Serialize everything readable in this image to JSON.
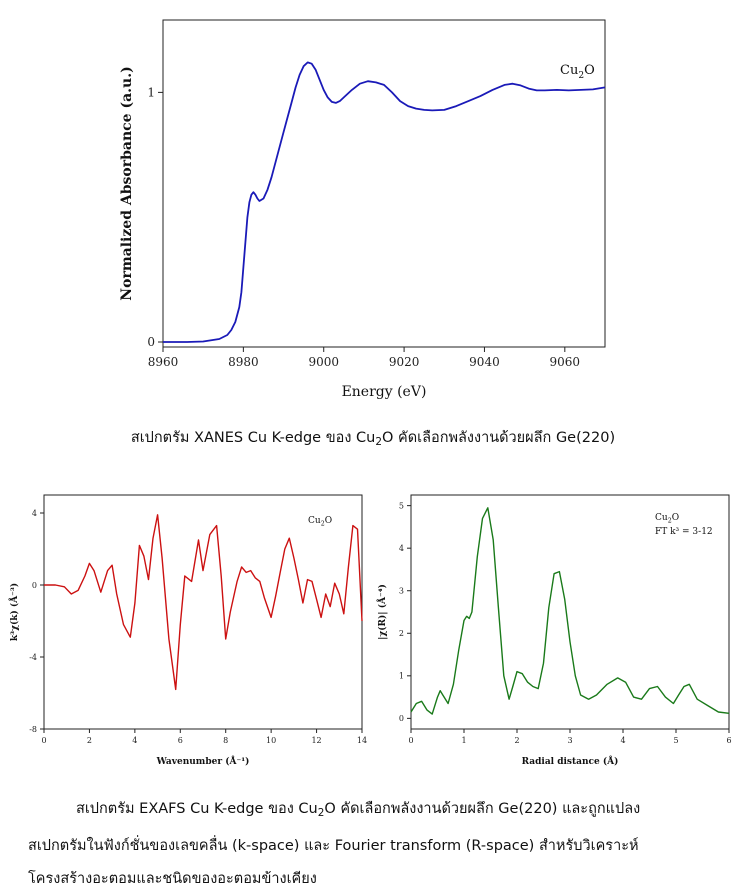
{
  "chart_data": [
    {
      "type": "line",
      "xlabel": "Energy (eV)",
      "ylabel": "Normalized Absorbance (a.u.)",
      "xlim": [
        8960,
        9070
      ],
      "ylim": [
        -0.02,
        1.29
      ],
      "xticks": [
        "8960",
        "8980",
        "9000",
        "9020",
        "9040",
        "9060"
      ],
      "yticks": [
        "0",
        "1"
      ],
      "legend": "Cu₂O",
      "color": "#1a1ab8",
      "series": [
        {
          "name": "Cu₂O",
          "x": [
            8960,
            8966,
            8970,
            8974,
            8976,
            8977,
            8978,
            8979,
            8979.5,
            8980,
            8980.5,
            8981,
            8981.5,
            8982,
            8982.5,
            8983,
            8983.5,
            8984,
            8985,
            8986,
            8987,
            8988,
            8990,
            8992,
            8993,
            8994,
            8995,
            8996,
            8997,
            8998,
            8999,
            9000,
            9001,
            9002,
            9003,
            9004,
            9005,
            9007,
            9009,
            9011,
            9013,
            9015,
            9017,
            9019,
            9021,
            9023,
            9025,
            9027,
            9030,
            9033,
            9036,
            9039,
            9042,
            9045,
            9047,
            9049,
            9051,
            9053,
            9055,
            9058,
            9061,
            9064,
            9067,
            9070
          ],
          "y": [
            0,
            0,
            0.002,
            0.012,
            0.028,
            0.048,
            0.08,
            0.14,
            0.2,
            0.3,
            0.4,
            0.5,
            0.56,
            0.59,
            0.6,
            0.59,
            0.575,
            0.565,
            0.575,
            0.61,
            0.66,
            0.72,
            0.84,
            0.96,
            1.02,
            1.07,
            1.105,
            1.12,
            1.115,
            1.09,
            1.05,
            1.01,
            0.98,
            0.962,
            0.958,
            0.965,
            0.98,
            1.01,
            1.035,
            1.045,
            1.04,
            1.03,
            1.0,
            0.965,
            0.945,
            0.935,
            0.93,
            0.928,
            0.93,
            0.945,
            0.965,
            0.985,
            1.01,
            1.03,
            1.035,
            1.028,
            1.015,
            1.008,
            1.008,
            1.01,
            1.008,
            1.01,
            1.012,
            1.02
          ]
        }
      ]
    },
    {
      "type": "line",
      "xlabel": "Wavenumber (Å⁻¹)",
      "ylabel": "k³χ(k) (Å⁻³)",
      "xlim": [
        0,
        14
      ],
      "ylim": [
        -8,
        5
      ],
      "xticks": [
        "0",
        "2",
        "4",
        "6",
        "8",
        "10",
        "12",
        "14"
      ],
      "yticks": [
        "-8",
        "-4",
        "0",
        "4"
      ],
      "legend": "Cu₂O",
      "color": "#cc1111",
      "series": [
        {
          "name": "Cu₂O",
          "x": [
            0,
            0.5,
            0.9,
            1.2,
            1.5,
            1.8,
            2.0,
            2.2,
            2.5,
            2.8,
            3.0,
            3.2,
            3.5,
            3.8,
            4.0,
            4.2,
            4.4,
            4.6,
            4.8,
            5.0,
            5.2,
            5.5,
            5.8,
            6.0,
            6.2,
            6.5,
            6.8,
            7.0,
            7.3,
            7.6,
            7.8,
            8.0,
            8.2,
            8.5,
            8.7,
            8.9,
            9.1,
            9.3,
            9.5,
            9.7,
            10.0,
            10.2,
            10.4,
            10.6,
            10.8,
            11.0,
            11.2,
            11.4,
            11.6,
            11.8,
            12.0,
            12.2,
            12.4,
            12.6,
            12.8,
            13.0,
            13.2,
            13.4,
            13.6,
            13.8,
            14.0
          ],
          "y": [
            0,
            0,
            -0.1,
            -0.5,
            -0.3,
            0.5,
            1.2,
            0.8,
            -0.4,
            0.8,
            1.1,
            -0.5,
            -2.2,
            -2.9,
            -1.0,
            2.2,
            1.6,
            0.3,
            2.6,
            3.9,
            1.5,
            -3.0,
            -5.8,
            -2.2,
            0.5,
            0.2,
            2.5,
            0.8,
            2.8,
            3.3,
            0.5,
            -3.0,
            -1.5,
            0.2,
            1.0,
            0.7,
            0.8,
            0.4,
            0.2,
            -0.7,
            -1.8,
            -0.6,
            0.7,
            2.0,
            2.6,
            1.5,
            0.3,
            -1.0,
            0.3,
            0.2,
            -0.8,
            -1.8,
            -0.5,
            -1.2,
            0.1,
            -0.5,
            -1.6,
            1.0,
            3.3,
            3.1,
            -2.0
          ]
        }
      ]
    },
    {
      "type": "line",
      "xlabel": "Radial distance (Å)",
      "ylabel": "|χ(R)| (Å⁻⁴)",
      "xlim": [
        0,
        6
      ],
      "ylim": [
        -0.25,
        5.25
      ],
      "xticks": [
        "0",
        "1",
        "2",
        "3",
        "4",
        "5",
        "6"
      ],
      "yticks": [
        "0",
        "1",
        "2",
        "3",
        "4",
        "5"
      ],
      "legend": "Cu₂O",
      "annotation": "FT k³ = 3-12",
      "color": "#1a7a1a",
      "series": [
        {
          "name": "Cu₂O",
          "x": [
            0,
            0.1,
            0.2,
            0.3,
            0.4,
            0.5,
            0.55,
            0.6,
            0.7,
            0.8,
            0.9,
            1.0,
            1.05,
            1.1,
            1.15,
            1.25,
            1.35,
            1.45,
            1.55,
            1.65,
            1.75,
            1.85,
            1.92,
            2.0,
            2.1,
            2.2,
            2.3,
            2.4,
            2.5,
            2.6,
            2.7,
            2.8,
            2.9,
            3.0,
            3.1,
            3.2,
            3.35,
            3.5,
            3.7,
            3.9,
            4.05,
            4.2,
            4.35,
            4.5,
            4.65,
            4.8,
            4.95,
            5.05,
            5.15,
            5.25,
            5.4,
            5.6,
            5.8,
            6.0
          ],
          "y": [
            0.15,
            0.35,
            0.4,
            0.2,
            0.1,
            0.5,
            0.65,
            0.55,
            0.35,
            0.8,
            1.6,
            2.3,
            2.4,
            2.35,
            2.5,
            3.8,
            4.7,
            4.95,
            4.2,
            2.6,
            1.0,
            0.45,
            0.75,
            1.1,
            1.05,
            0.85,
            0.75,
            0.7,
            1.3,
            2.6,
            3.4,
            3.45,
            2.8,
            1.8,
            1.0,
            0.55,
            0.45,
            0.55,
            0.8,
            0.95,
            0.85,
            0.5,
            0.45,
            0.7,
            0.75,
            0.5,
            0.35,
            0.55,
            0.75,
            0.8,
            0.45,
            0.3,
            0.15,
            0.12
          ]
        }
      ]
    }
  ],
  "captions": {
    "xanes_part1": "สเปกตรัม XANES Cu K-edge ของ Cu",
    "xanes_sub": "2",
    "xanes_part2": "O คัดเลือกพลังงานด้วยผลึก Ge(220)",
    "exafs_part1": "สเปกตรัม EXAFS Cu K-edge ของ Cu",
    "exafs_sub": "2",
    "exafs_part2": "O คัดเลือกพลังงานด้วยผลึก Ge(220) และถูกแปลง",
    "exafs_line2": "สเปกตรัมในฟังก์ชั่นของเลขคลื่น (k-space) และ Fourier transform (R-space) สำหรับวิเคราะห์",
    "exafs_line3": "โครงสร้างอะตอมและชนิดของอะตอมข้างเคียง"
  }
}
